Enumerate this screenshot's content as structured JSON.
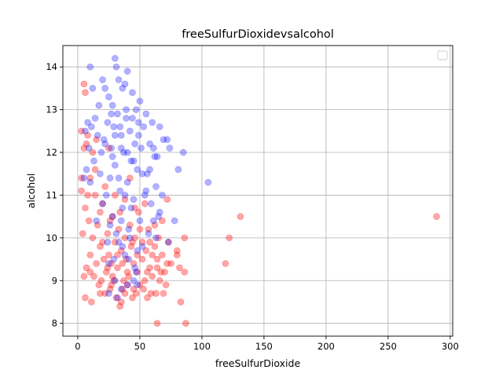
{
  "chart_data": {
    "type": "scatter",
    "title": "freeSulfurDioxidevsalcohol",
    "xlabel": "freeSulfurDioxide",
    "ylabel": "alcohol",
    "xlim": [
      -12,
      302
    ],
    "ylim": [
      7.7,
      14.5
    ],
    "xticks": [
      0,
      50,
      100,
      150,
      200,
      250,
      300
    ],
    "yticks": [
      8,
      9,
      10,
      11,
      12,
      13,
      14
    ],
    "grid": true,
    "legend": {
      "placement": "top-right",
      "entries": []
    },
    "series": [
      {
        "color": "#ff0000",
        "alpha": 0.35,
        "points": [
          [
            289,
            10.5
          ],
          [
            131,
            10.5
          ],
          [
            122,
            10.0
          ],
          [
            119,
            9.4
          ],
          [
            87,
            8.0
          ],
          [
            86,
            9.2
          ],
          [
            86,
            10.0
          ],
          [
            83,
            8.5
          ],
          [
            82,
            9.3
          ],
          [
            80,
            9.6
          ],
          [
            80,
            9.7
          ],
          [
            75,
            9.4
          ],
          [
            73,
            9.9
          ],
          [
            72,
            10.9
          ],
          [
            72,
            9.4
          ],
          [
            71,
            8.9
          ],
          [
            70,
            9.2
          ],
          [
            69,
            8.7
          ],
          [
            68,
            10.4
          ],
          [
            67,
            9.2
          ],
          [
            66,
            9.0
          ],
          [
            65,
            10.0
          ],
          [
            64,
            8.0
          ],
          [
            64,
            9.5
          ],
          [
            63,
            8.7
          ],
          [
            62,
            9.8
          ],
          [
            60,
            9.1
          ],
          [
            59,
            8.7
          ],
          [
            58,
            9.3
          ],
          [
            57,
            10.2
          ],
          [
            56,
            8.6
          ],
          [
            55,
            9.7
          ],
          [
            54,
            9.0
          ],
          [
            53,
            8.8
          ],
          [
            52,
            9.5
          ],
          [
            50,
            8.9
          ],
          [
            49,
            10.6
          ],
          [
            48,
            9.2
          ],
          [
            47,
            8.7
          ],
          [
            46,
            10.0
          ],
          [
            45,
            9.4
          ],
          [
            44,
            8.6
          ],
          [
            43,
            9.8
          ],
          [
            42,
            10.3
          ],
          [
            41,
            9.1
          ],
          [
            40,
            8.9
          ],
          [
            39,
            9.5
          ],
          [
            38,
            10.9
          ],
          [
            37,
            9.0
          ],
          [
            36,
            8.8
          ],
          [
            35,
            9.7
          ],
          [
            34,
            8.4
          ],
          [
            33,
            10.2
          ],
          [
            32,
            9.3
          ],
          [
            31,
            8.6
          ],
          [
            30,
            9.9
          ],
          [
            29,
            9.0
          ],
          [
            28,
            10.5
          ],
          [
            27,
            9.4
          ],
          [
            26,
            8.8
          ],
          [
            25,
            9.6
          ],
          [
            24,
            10.1
          ],
          [
            23,
            9.2
          ],
          [
            22,
            8.7
          ],
          [
            21,
            9.5
          ],
          [
            20,
            10.8
          ],
          [
            19,
            9.0
          ],
          [
            18,
            9.8
          ],
          [
            17,
            8.9
          ],
          [
            16,
            10.3
          ],
          [
            15,
            9.4
          ],
          [
            14,
            11.6
          ],
          [
            13,
            9.1
          ],
          [
            12,
            10.0
          ],
          [
            11,
            8.5
          ],
          [
            10,
            9.6
          ],
          [
            9,
            10.4
          ],
          [
            8,
            11.0
          ],
          [
            7,
            9.3
          ],
          [
            6,
            10.7
          ],
          [
            5,
            9.1
          ],
          [
            4,
            10.1
          ],
          [
            3,
            11.4
          ],
          [
            5,
            13.6
          ],
          [
            6,
            13.4
          ],
          [
            3,
            12.5
          ],
          [
            5,
            12.1
          ],
          [
            7,
            12.2
          ],
          [
            8,
            12.4
          ],
          [
            3,
            11.1
          ],
          [
            6,
            8.6
          ],
          [
            10,
            11.4
          ],
          [
            12,
            12.0
          ],
          [
            14,
            11.0
          ],
          [
            18,
            10.6
          ],
          [
            22,
            11.2
          ],
          [
            26,
            10.4
          ],
          [
            30,
            11.0
          ],
          [
            34,
            10.6
          ],
          [
            38,
            10.0
          ],
          [
            42,
            11.4
          ],
          [
            46,
            10.7
          ],
          [
            50,
            10.2
          ],
          [
            54,
            10.8
          ],
          [
            58,
            9.9
          ],
          [
            62,
            10.3
          ],
          [
            25,
            12.1
          ],
          [
            15,
            12.3
          ],
          [
            20,
            9.9
          ],
          [
            24,
            9.3
          ],
          [
            28,
            9.1
          ],
          [
            32,
            9.6
          ],
          [
            36,
            9.4
          ],
          [
            40,
            9.2
          ],
          [
            44,
            9.9
          ],
          [
            48,
            9.6
          ],
          [
            52,
            9.9
          ],
          [
            56,
            9.2
          ],
          [
            60,
            9.6
          ],
          [
            64,
            9.3
          ],
          [
            68,
            9.6
          ],
          [
            45,
            8.8
          ],
          [
            35,
            8.5
          ],
          [
            18,
            8.7
          ],
          [
            10,
            9.2
          ],
          [
            27,
            8.9
          ],
          [
            38,
            8.7
          ]
        ]
      },
      {
        "color": "#0000ff",
        "alpha": 0.3,
        "points": [
          [
            105,
            11.3
          ],
          [
            85,
            12.0
          ],
          [
            81,
            11.6
          ],
          [
            78,
            10.4
          ],
          [
            74,
            12.1
          ],
          [
            73,
            9.9
          ],
          [
            72,
            12.3
          ],
          [
            69,
            12.3
          ],
          [
            68,
            11.0
          ],
          [
            66,
            12.6
          ],
          [
            65,
            10.5
          ],
          [
            64,
            11.9
          ],
          [
            63,
            11.2
          ],
          [
            62,
            11.9
          ],
          [
            61,
            12.1
          ],
          [
            60,
            12.7
          ],
          [
            59,
            10.8
          ],
          [
            58,
            12.2
          ],
          [
            57,
            10.1
          ],
          [
            56,
            11.5
          ],
          [
            55,
            12.9
          ],
          [
            54,
            11.0
          ],
          [
            53,
            12.6
          ],
          [
            52,
            9.8
          ],
          [
            51,
            12.1
          ],
          [
            50,
            13.2
          ],
          [
            50,
            10.4
          ],
          [
            49,
            12.7
          ],
          [
            48,
            11.6
          ],
          [
            47,
            13.0
          ],
          [
            47,
            9.2
          ],
          [
            46,
            12.2
          ],
          [
            45,
            10.9
          ],
          [
            44,
            13.4
          ],
          [
            43,
            11.8
          ],
          [
            42,
            12.5
          ],
          [
            41,
            10.2
          ],
          [
            40,
            13.9
          ],
          [
            40,
            11.3
          ],
          [
            39,
            12.8
          ],
          [
            38,
            9.6
          ],
          [
            38,
            13.6
          ],
          [
            37,
            12.0
          ],
          [
            36,
            10.7
          ],
          [
            36,
            13.5
          ],
          [
            35,
            12.4
          ],
          [
            34,
            11.1
          ],
          [
            33,
            13.7
          ],
          [
            33,
            9.9
          ],
          [
            32,
            12.9
          ],
          [
            31,
            14.0
          ],
          [
            30,
            11.7
          ],
          [
            30,
            14.2
          ],
          [
            29,
            12.6
          ],
          [
            28,
            10.5
          ],
          [
            28,
            13.1
          ],
          [
            27,
            12.1
          ],
          [
            26,
            11.4
          ],
          [
            25,
            13.3
          ],
          [
            25,
            9.4
          ],
          [
            24,
            12.7
          ],
          [
            23,
            11.0
          ],
          [
            22,
            13.5
          ],
          [
            21,
            12.3
          ],
          [
            20,
            10.8
          ],
          [
            20,
            13.7
          ],
          [
            19,
            12.0
          ],
          [
            18,
            11.5
          ],
          [
            17,
            13.1
          ],
          [
            16,
            12.4
          ],
          [
            15,
            10.4
          ],
          [
            14,
            12.8
          ],
          [
            13,
            11.8
          ],
          [
            12,
            13.5
          ],
          [
            11,
            12.6
          ],
          [
            10,
            14.0
          ],
          [
            10,
            11.3
          ],
          [
            9,
            12.1
          ],
          [
            8,
            12.7
          ],
          [
            7,
            11.6
          ],
          [
            6,
            12.5
          ],
          [
            5,
            11.4
          ],
          [
            30,
            12.4
          ],
          [
            35,
            12.1
          ],
          [
            40,
            12.0
          ],
          [
            45,
            11.8
          ],
          [
            28,
            11.9
          ],
          [
            33,
            11.4
          ],
          [
            38,
            11.0
          ],
          [
            43,
            10.7
          ],
          [
            26,
            10.3
          ],
          [
            31,
            10.1
          ],
          [
            36,
            9.8
          ],
          [
            41,
            9.5
          ],
          [
            46,
            9.3
          ],
          [
            30,
            9.0
          ],
          [
            35,
            8.8
          ],
          [
            40,
            8.9
          ],
          [
            45,
            9.0
          ],
          [
            25,
            8.7
          ],
          [
            32,
            8.6
          ],
          [
            48,
            8.9
          ],
          [
            22,
            12.2
          ],
          [
            27,
            12.9
          ],
          [
            34,
            12.6
          ],
          [
            39,
            13.0
          ],
          [
            44,
            12.8
          ],
          [
            49,
            12.4
          ],
          [
            52,
            11.5
          ],
          [
            55,
            11.1
          ],
          [
            58,
            11.6
          ],
          [
            61,
            10.4
          ],
          [
            63,
            10.0
          ],
          [
            66,
            10.6
          ],
          [
            35,
            10.4
          ],
          [
            42,
            10.0
          ],
          [
            48,
            9.7
          ],
          [
            24,
            9.9
          ],
          [
            29,
            9.5
          ]
        ]
      }
    ]
  }
}
